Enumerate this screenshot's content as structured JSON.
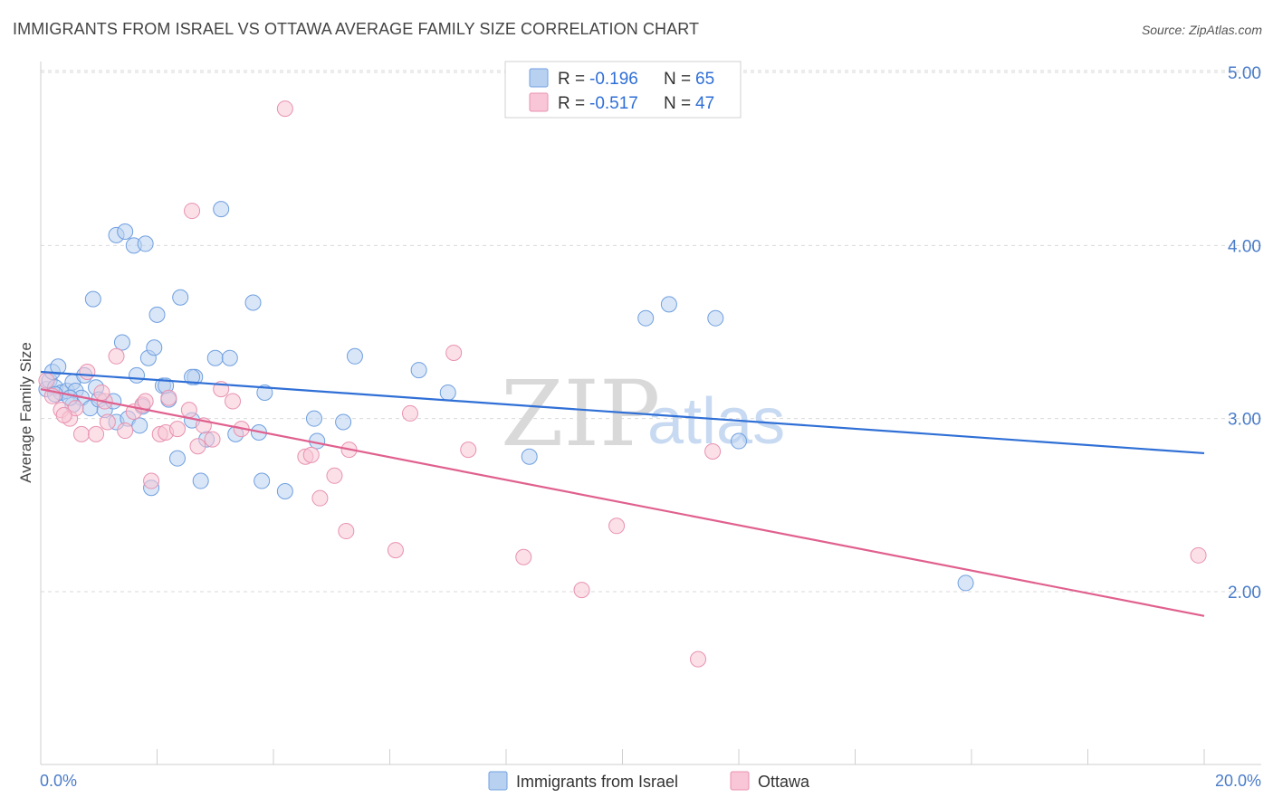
{
  "title": "IMMIGRANTS FROM ISRAEL VS OTTAWA AVERAGE FAMILY SIZE CORRELATION CHART",
  "source": "Source: ZipAtlas.com",
  "watermark": {
    "zip": "ZIP",
    "atlas": "atlas"
  },
  "colors": {
    "blue_fill": "#b9d1f1",
    "blue_stroke": "#6f9fe0",
    "blue_line": "#2f6fd6",
    "pink_fill": "#f8c6d6",
    "pink_stroke": "#e892b0",
    "pink_line": "#e0608e",
    "grid": "#d9d9d9",
    "axis_text": "#4a7cc9"
  },
  "legend": {
    "rows": [
      {
        "r_label": "R = ",
        "r_value": "-0.196",
        "n_label": "N = ",
        "n_value": "65",
        "series": "blue"
      },
      {
        "r_label": "R = ",
        "r_value": "-0.517",
        "n_label": "N = ",
        "n_value": "47",
        "series": "pink"
      }
    ]
  },
  "chart_data": {
    "type": "scatter",
    "ylabel": "Average Family Size",
    "xlabel": "",
    "x_tick_labels": [
      "0.0%",
      "20.0%"
    ],
    "y_tick_labels": [
      "2.00",
      "3.00",
      "4.00",
      "5.00"
    ],
    "y_ticks": [
      2.0,
      3.0,
      4.0,
      5.0
    ],
    "xlim": [
      0.0,
      20.0
    ],
    "ylim": [
      1.1,
      5.1
    ],
    "grid": true,
    "legend_position": "top-center",
    "series": [
      {
        "name": "Immigrants from Israel",
        "color": "#6f9fe0",
        "trend": {
          "x": [
            0.0,
            20.0
          ],
          "y": [
            3.27,
            2.8
          ]
        },
        "points": [
          [
            0.1,
            3.17
          ],
          [
            0.15,
            3.22
          ],
          [
            0.2,
            3.27
          ],
          [
            0.25,
            3.18
          ],
          [
            0.3,
            3.3
          ],
          [
            0.35,
            3.15
          ],
          [
            0.45,
            3.16
          ],
          [
            0.55,
            3.21
          ],
          [
            0.6,
            3.16
          ],
          [
            0.7,
            3.12
          ],
          [
            0.75,
            3.25
          ],
          [
            0.85,
            3.06
          ],
          [
            0.95,
            3.18
          ],
          [
            1.0,
            3.11
          ],
          [
            0.9,
            3.69
          ],
          [
            1.3,
            4.06
          ],
          [
            1.45,
            4.08
          ],
          [
            1.6,
            4.0
          ],
          [
            1.8,
            4.01
          ],
          [
            1.4,
            3.44
          ],
          [
            1.65,
            3.25
          ],
          [
            1.85,
            3.35
          ],
          [
            1.95,
            3.41
          ],
          [
            2.0,
            3.6
          ],
          [
            2.1,
            3.19
          ],
          [
            2.2,
            3.11
          ],
          [
            2.4,
            3.7
          ],
          [
            1.3,
            2.98
          ],
          [
            1.5,
            3.0
          ],
          [
            1.7,
            2.96
          ],
          [
            1.9,
            2.6
          ],
          [
            2.35,
            2.77
          ],
          [
            2.6,
            2.99
          ],
          [
            2.65,
            3.24
          ],
          [
            2.75,
            2.64
          ],
          [
            2.85,
            2.88
          ],
          [
            3.0,
            3.35
          ],
          [
            3.1,
            4.21
          ],
          [
            3.25,
            3.35
          ],
          [
            3.35,
            2.91
          ],
          [
            3.65,
            3.67
          ],
          [
            3.75,
            2.92
          ],
          [
            3.8,
            2.64
          ],
          [
            3.85,
            3.15
          ],
          [
            4.2,
            2.58
          ],
          [
            4.7,
            3.0
          ],
          [
            4.75,
            2.87
          ],
          [
            5.2,
            2.98
          ],
          [
            5.4,
            3.36
          ],
          [
            6.5,
            3.28
          ],
          [
            7.0,
            3.15
          ],
          [
            8.4,
            2.78
          ],
          [
            10.4,
            3.58
          ],
          [
            10.8,
            3.66
          ],
          [
            11.6,
            3.58
          ],
          [
            12.0,
            2.87
          ],
          [
            15.9,
            2.05
          ],
          [
            1.1,
            3.05
          ],
          [
            0.55,
            3.08
          ],
          [
            2.15,
            3.19
          ],
          [
            1.75,
            3.07
          ],
          [
            0.25,
            3.14
          ],
          [
            0.5,
            3.12
          ],
          [
            2.6,
            3.24
          ],
          [
            1.25,
            3.1
          ]
        ]
      },
      {
        "name": "Ottawa",
        "color": "#e892b0",
        "trend": {
          "x": [
            0.0,
            20.0
          ],
          "y": [
            3.17,
            1.86
          ]
        },
        "points": [
          [
            0.1,
            3.22
          ],
          [
            0.2,
            3.13
          ],
          [
            0.35,
            3.05
          ],
          [
            0.5,
            3.0
          ],
          [
            0.6,
            3.06
          ],
          [
            0.7,
            2.91
          ],
          [
            0.8,
            3.27
          ],
          [
            0.95,
            2.91
          ],
          [
            1.1,
            3.1
          ],
          [
            1.15,
            2.98
          ],
          [
            1.3,
            3.36
          ],
          [
            1.45,
            2.93
          ],
          [
            1.6,
            3.04
          ],
          [
            1.75,
            3.08
          ],
          [
            1.8,
            3.1
          ],
          [
            1.9,
            2.64
          ],
          [
            2.05,
            2.91
          ],
          [
            2.15,
            2.92
          ],
          [
            2.2,
            3.12
          ],
          [
            2.35,
            2.94
          ],
          [
            2.55,
            3.05
          ],
          [
            2.6,
            4.2
          ],
          [
            2.7,
            2.84
          ],
          [
            2.8,
            2.96
          ],
          [
            2.95,
            2.88
          ],
          [
            3.1,
            3.17
          ],
          [
            3.3,
            3.1
          ],
          [
            3.45,
            2.94
          ],
          [
            4.2,
            4.79
          ],
          [
            4.55,
            2.78
          ],
          [
            4.65,
            2.79
          ],
          [
            4.8,
            2.54
          ],
          [
            5.05,
            2.67
          ],
          [
            5.25,
            2.35
          ],
          [
            5.3,
            2.82
          ],
          [
            6.1,
            2.24
          ],
          [
            6.35,
            3.03
          ],
          [
            7.1,
            3.38
          ],
          [
            7.35,
            2.82
          ],
          [
            8.3,
            2.2
          ],
          [
            9.3,
            2.01
          ],
          [
            9.9,
            2.38
          ],
          [
            11.3,
            1.61
          ],
          [
            11.55,
            2.81
          ],
          [
            19.9,
            2.21
          ],
          [
            0.4,
            3.02
          ],
          [
            1.05,
            3.15
          ]
        ]
      }
    ]
  },
  "bottom_legend": [
    {
      "label": "Immigrants from Israel",
      "series": "blue"
    },
    {
      "label": "Ottawa",
      "series": "pink"
    }
  ]
}
